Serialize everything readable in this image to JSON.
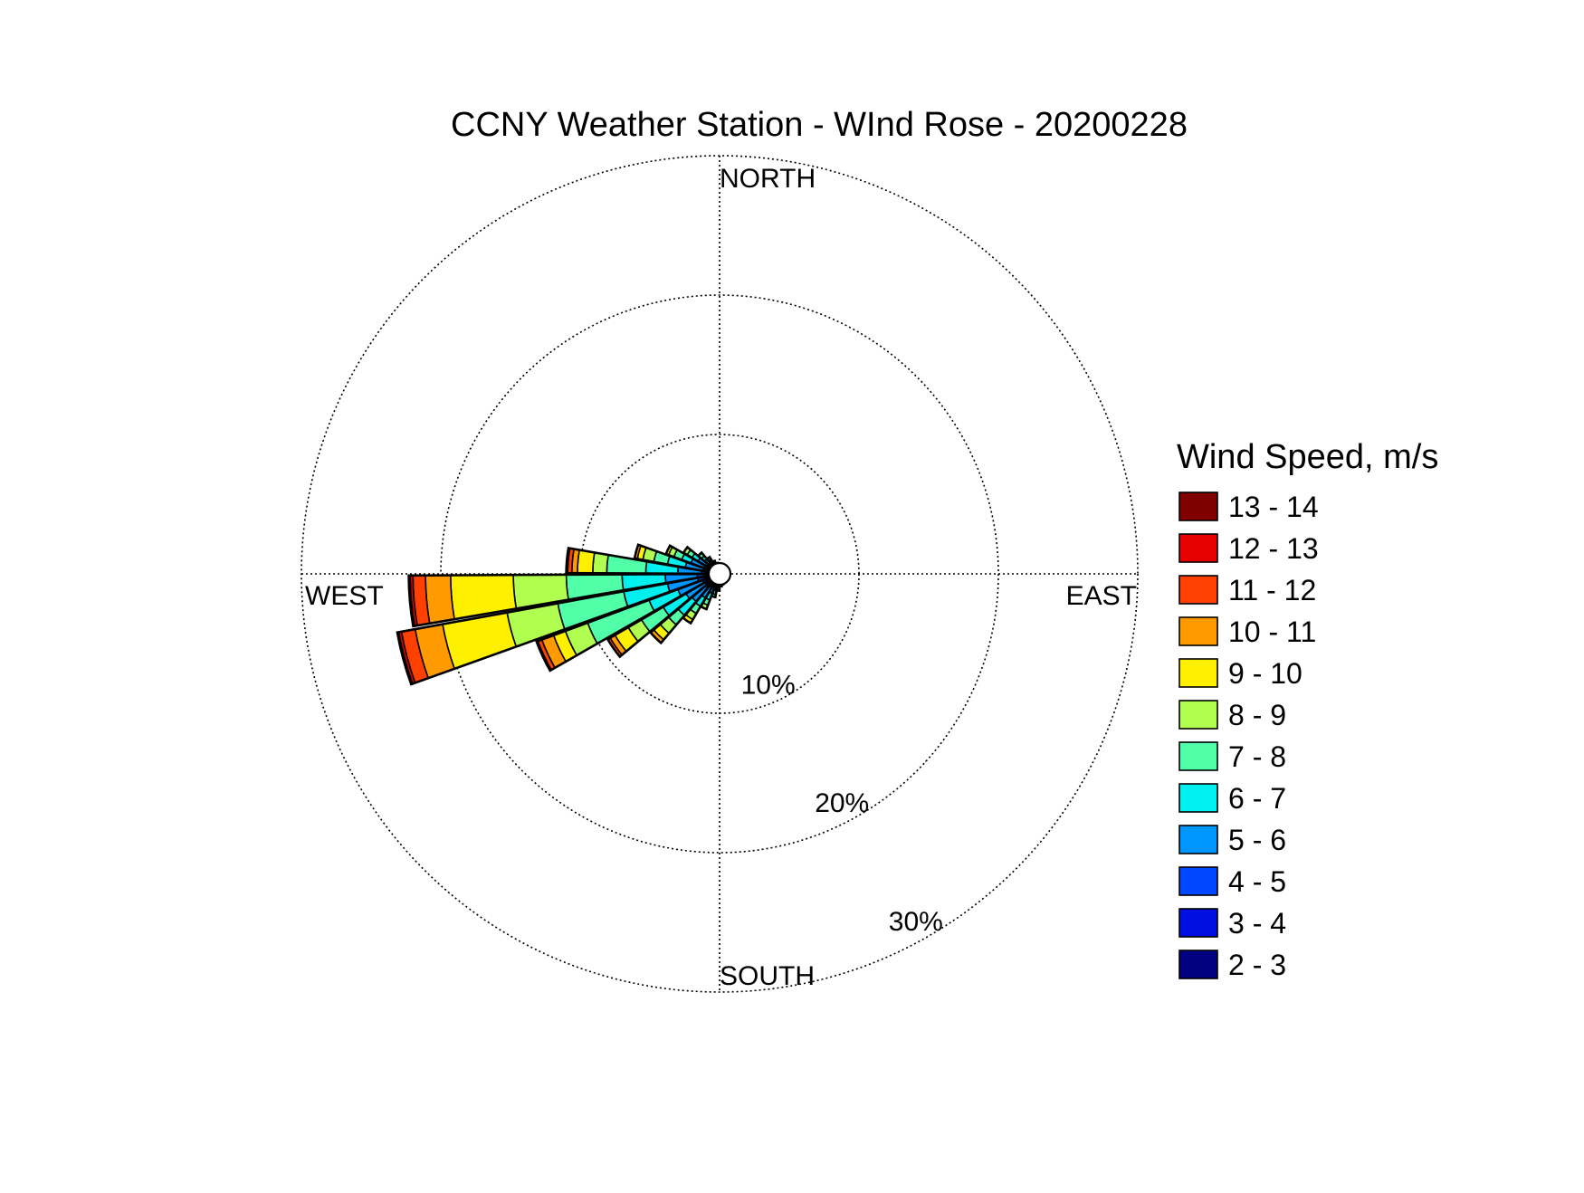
{
  "chart_data": {
    "type": "wind-rose",
    "title": "CCNY Weather Station - WInd Rose - 20200228",
    "directions": {
      "north": "NORTH",
      "south": "SOUTH",
      "east": "EAST",
      "west": "WEST"
    },
    "radial_ticks": [
      {
        "value": 10,
        "label": "10%"
      },
      {
        "value": 20,
        "label": "20%"
      },
      {
        "value": 30,
        "label": "30%"
      }
    ],
    "r_max": 30,
    "grid": true,
    "legend": {
      "title": "Wind Speed, m/s",
      "placement": "right",
      "bins": [
        {
          "label": "13 - 14",
          "color": "#800000"
        },
        {
          "label": "12 - 13",
          "color": "#E60000"
        },
        {
          "label": "11 - 12",
          "color": "#FF4000"
        },
        {
          "label": "10 - 11",
          "color": "#FF9A00"
        },
        {
          "label": "9 - 10",
          "color": "#FFF000"
        },
        {
          "label": "8 - 9",
          "color": "#B0FF50"
        },
        {
          "label": "7 - 8",
          "color": "#50FFA8"
        },
        {
          "label": "6 - 7",
          "color": "#00F0F0"
        },
        {
          "label": "5 - 6",
          "color": "#0096FF"
        },
        {
          "label": "4 - 5",
          "color": "#0048FF"
        },
        {
          "label": "3 - 4",
          "color": "#0010E0"
        },
        {
          "label": "2 - 3",
          "color": "#000080"
        }
      ]
    },
    "bin_order_from_center": [
      "2 - 3",
      "3 - 4",
      "4 - 5",
      "5 - 6",
      "6 - 7",
      "7 - 8",
      "8 - 9",
      "9 - 10",
      "10 - 11",
      "11 - 12",
      "12 - 13",
      "13 - 14"
    ],
    "sectors": [
      {
        "direction_deg": 255,
        "cumulative_pct": [
          0.3,
          0.7,
          1.6,
          3.8,
          7.0,
          11.8,
          15.5,
          20.2,
          22.2,
          23.2,
          23.4,
          23.5
        ]
      },
      {
        "direction_deg": 265,
        "cumulative_pct": [
          0.3,
          0.7,
          1.6,
          3.9,
          7.0,
          11.0,
          14.8,
          19.3,
          21.1,
          22.0,
          22.2,
          22.3
        ]
      },
      {
        "direction_deg": 245,
        "cumulative_pct": [
          0.3,
          0.6,
          1.3,
          3.2,
          5.4,
          10.1,
          11.8,
          12.7,
          13.6,
          13.9,
          14.0
        ]
      },
      {
        "direction_deg": 275,
        "cumulative_pct": [
          0.3,
          0.6,
          1.3,
          3.0,
          5.3,
          8.1,
          9.1,
          10.2,
          10.6,
          10.9,
          11.0
        ]
      },
      {
        "direction_deg": 235,
        "cumulative_pct": [
          0.3,
          0.6,
          1.2,
          2.8,
          4.7,
          6.5,
          7.6,
          8.7,
          9.1,
          9.3
        ]
      },
      {
        "direction_deg": 285,
        "cumulative_pct": [
          0.3,
          0.6,
          1.2,
          2.5,
          3.8,
          4.8,
          5.6,
          6.0,
          6.2
        ]
      },
      {
        "direction_deg": 225,
        "cumulative_pct": [
          0.3,
          0.6,
          1.3,
          2.6,
          3.9,
          4.8,
          5.6,
          6.2,
          6.5
        ]
      },
      {
        "direction_deg": 295,
        "cumulative_pct": [
          0.3,
          0.6,
          1.2,
          2.2,
          2.9,
          3.5,
          3.9,
          4.1
        ]
      },
      {
        "direction_deg": 215,
        "cumulative_pct": [
          0.3,
          0.6,
          1.1,
          2.0,
          2.7,
          3.3,
          3.8,
          4.1
        ]
      },
      {
        "direction_deg": 305,
        "cumulative_pct": [
          0.3,
          0.6,
          1.1,
          1.8,
          2.3,
          2.7,
          3.0
        ]
      },
      {
        "direction_deg": 205,
        "cumulative_pct": [
          0.3,
          0.6,
          1.0,
          1.5,
          2.0,
          2.4,
          2.7
        ]
      },
      {
        "direction_deg": 315,
        "cumulative_pct": [
          0.3,
          0.6,
          1.0,
          1.4,
          1.7,
          2.0
        ]
      },
      {
        "direction_deg": 195,
        "cumulative_pct": [
          0.3,
          0.6,
          0.9,
          1.2,
          1.5,
          1.7
        ]
      },
      {
        "direction_deg": 325,
        "cumulative_pct": [
          0.3,
          0.6,
          0.9,
          1.2,
          1.4
        ]
      },
      {
        "direction_deg": 185,
        "cumulative_pct": [
          0.3,
          0.6,
          0.8,
          1.0,
          1.2
        ]
      },
      {
        "direction_deg": 335,
        "cumulative_pct": [
          0.3,
          0.6,
          0.8,
          1.0
        ]
      },
      {
        "direction_deg": 175,
        "cumulative_pct": [
          0.3,
          0.6,
          0.8,
          0.9
        ]
      },
      {
        "direction_deg": 345,
        "cumulative_pct": [
          0.3,
          0.6,
          0.8
        ]
      },
      {
        "direction_deg": 165,
        "cumulative_pct": [
          0.3,
          0.6,
          0.8
        ]
      },
      {
        "direction_deg": 355,
        "cumulative_pct": [
          0.3,
          0.6,
          0.7
        ]
      },
      {
        "direction_deg": 155,
        "cumulative_pct": [
          0.3,
          0.6,
          0.7
        ]
      },
      {
        "direction_deg": 5,
        "cumulative_pct": [
          0.3,
          0.6,
          0.7
        ]
      },
      {
        "direction_deg": 145,
        "cumulative_pct": [
          0.3,
          0.6,
          0.7
        ]
      },
      {
        "direction_deg": 15,
        "cumulative_pct": [
          0.3,
          0.6,
          0.7
        ]
      },
      {
        "direction_deg": 135,
        "cumulative_pct": [
          0.3,
          0.6,
          0.7
        ]
      },
      {
        "direction_deg": 25,
        "cumulative_pct": [
          0.3,
          0.6,
          0.7
        ]
      },
      {
        "direction_deg": 125,
        "cumulative_pct": [
          0.3,
          0.6,
          0.7
        ]
      },
      {
        "direction_deg": 35,
        "cumulative_pct": [
          0.3,
          0.6,
          0.7
        ]
      },
      {
        "direction_deg": 115,
        "cumulative_pct": [
          0.3,
          0.6,
          0.7
        ]
      },
      {
        "direction_deg": 45,
        "cumulative_pct": [
          0.3,
          0.6,
          0.7
        ]
      },
      {
        "direction_deg": 105,
        "cumulative_pct": [
          0.3,
          0.6,
          0.7
        ]
      },
      {
        "direction_deg": 55,
        "cumulative_pct": [
          0.3,
          0.6,
          0.7
        ]
      },
      {
        "direction_deg": 95,
        "cumulative_pct": [
          0.3,
          0.6,
          0.7
        ]
      },
      {
        "direction_deg": 65,
        "cumulative_pct": [
          0.3,
          0.6,
          0.7
        ]
      },
      {
        "direction_deg": 85,
        "cumulative_pct": [
          0.3,
          0.6,
          0.7
        ]
      },
      {
        "direction_deg": 75,
        "cumulative_pct": [
          0.3,
          0.6,
          0.7
        ]
      }
    ]
  }
}
